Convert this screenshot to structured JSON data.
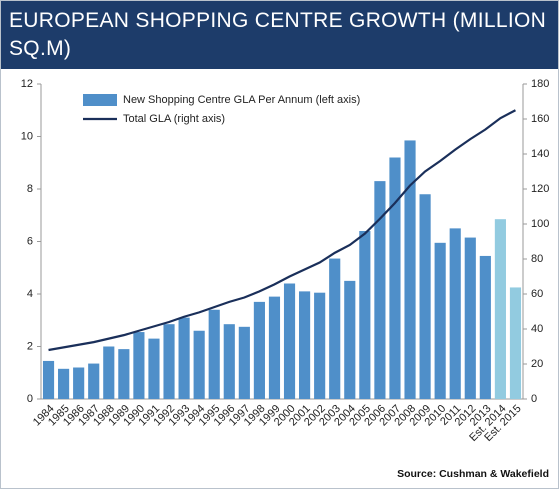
{
  "chart_data": {
    "type": "bar",
    "title": "EUROPEAN SHOPPING CENTRE GROWTH (MILLION SQ.M)",
    "source": "Source: Cushman & Wakefield",
    "categories": [
      "1984",
      "1985",
      "1986",
      "1987",
      "1988",
      "1989",
      "1990",
      "1991",
      "1992",
      "1993",
      "1994",
      "1995",
      "1996",
      "1997",
      "1998",
      "1999",
      "2000",
      "2001",
      "2002",
      "2003",
      "2004",
      "2005",
      "2006",
      "2007",
      "2008",
      "2009",
      "2010",
      "2011",
      "2012",
      "2013",
      "Est. 2014",
      "Est. 2015"
    ],
    "series": [
      {
        "name": "New Shopping Centre GLA Per Annum (left axis)",
        "type": "bar",
        "axis": "y",
        "color": "#4f8fc9",
        "colors": [
          "#4f8fc9",
          "#4f8fc9",
          "#4f8fc9",
          "#4f8fc9",
          "#4f8fc9",
          "#4f8fc9",
          "#4f8fc9",
          "#4f8fc9",
          "#4f8fc9",
          "#4f8fc9",
          "#4f8fc9",
          "#4f8fc9",
          "#4f8fc9",
          "#4f8fc9",
          "#4f8fc9",
          "#4f8fc9",
          "#4f8fc9",
          "#4f8fc9",
          "#4f8fc9",
          "#4f8fc9",
          "#4f8fc9",
          "#4f8fc9",
          "#4f8fc9",
          "#4f8fc9",
          "#4f8fc9",
          "#4f8fc9",
          "#4f8fc9",
          "#4f8fc9",
          "#4f8fc9",
          "#4f8fc9",
          "#92cbe0",
          "#92cbe0"
        ],
        "values": [
          1.45,
          1.15,
          1.2,
          1.35,
          2.0,
          1.9,
          2.55,
          2.3,
          2.85,
          3.1,
          2.6,
          3.4,
          2.85,
          2.75,
          3.7,
          3.9,
          4.4,
          4.1,
          4.05,
          5.35,
          4.5,
          6.4,
          8.3,
          9.2,
          9.85,
          7.8,
          5.95,
          6.5,
          6.15,
          5.45,
          6.85,
          4.25
        ]
      },
      {
        "name": "Total GLA (right axis)",
        "type": "line",
        "axis": "y2",
        "color": "#1a2f5a",
        "values": [
          28,
          29.5,
          31,
          32.5,
          34.5,
          36.5,
          39,
          41.5,
          44,
          47,
          49.5,
          52.5,
          55.5,
          58,
          61.5,
          65.5,
          70,
          74,
          78,
          83.5,
          88,
          94.5,
          103,
          112,
          122,
          130,
          136,
          142.5,
          148.5,
          154,
          160.5,
          165
        ]
      }
    ],
    "ylim": [
      0,
      12
    ],
    "yticks": [
      0,
      2,
      4,
      6,
      8,
      10,
      12
    ],
    "y2lim": [
      0,
      180
    ],
    "y2ticks": [
      0,
      20,
      40,
      60,
      80,
      100,
      120,
      140,
      160,
      180
    ],
    "legend": "upper left"
  }
}
